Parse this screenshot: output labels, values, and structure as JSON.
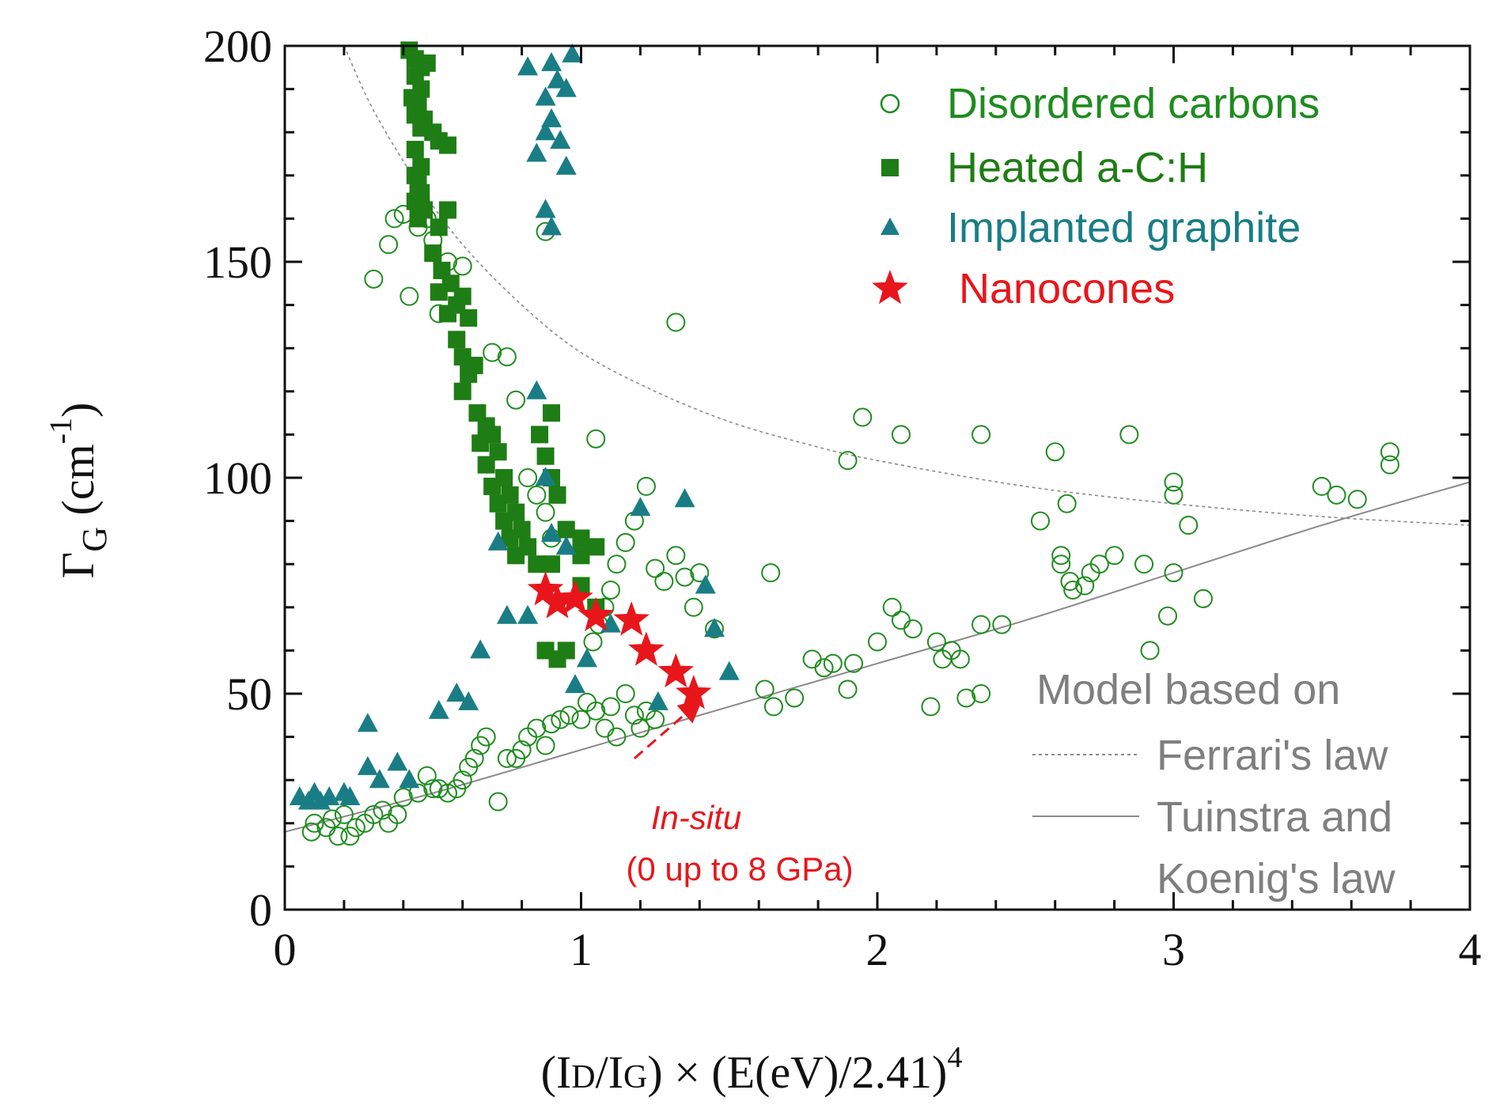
{
  "chart_data": {
    "type": "scatter",
    "title": "",
    "xlabel": "(ID/IG) × (E(eV)/2.41)4",
    "xlabel_parts": {
      "open": "(I",
      "sub1": "D",
      "mid": "/I",
      "sub2": "G",
      "close": ") × (E(eV)/2.41)",
      "sup": "4"
    },
    "ylabel": "ΓG (cm-1)",
    "ylabel_parts": {
      "gamma": "Γ",
      "sub": "G",
      "unit_open": "(cm",
      "sup": "-1",
      "unit_close": ")"
    },
    "xlim": [
      0,
      4
    ],
    "ylim": [
      0,
      200
    ],
    "xticks": [
      "0",
      "1",
      "2",
      "3",
      "4"
    ],
    "yticks": [
      "0",
      "50",
      "100",
      "150",
      "200"
    ],
    "colors": {
      "disordered": "#1e8c1e",
      "heated": "#1e7d14",
      "implanted": "#1a7d86",
      "nanocones": "#e8161b",
      "model": "#8a8a8a"
    },
    "series": [
      {
        "name": "Disordered carbons",
        "marker": "open-circle",
        "points": [
          [
            0.09,
            18
          ],
          [
            0.1,
            20
          ],
          [
            0.14,
            19
          ],
          [
            0.16,
            21
          ],
          [
            0.18,
            17
          ],
          [
            0.2,
            22
          ],
          [
            0.22,
            17
          ],
          [
            0.24,
            19
          ],
          [
            0.27,
            20
          ],
          [
            0.3,
            22
          ],
          [
            0.33,
            23
          ],
          [
            0.35,
            20
          ],
          [
            0.38,
            22
          ],
          [
            0.4,
            26
          ],
          [
            0.45,
            27
          ],
          [
            0.48,
            31
          ],
          [
            0.5,
            28
          ],
          [
            0.52,
            28
          ],
          [
            0.55,
            27
          ],
          [
            0.58,
            28
          ],
          [
            0.6,
            30
          ],
          [
            0.62,
            33
          ],
          [
            0.64,
            35
          ],
          [
            0.66,
            38
          ],
          [
            0.68,
            40
          ],
          [
            0.72,
            25
          ],
          [
            0.75,
            35
          ],
          [
            0.78,
            35
          ],
          [
            0.8,
            37
          ],
          [
            0.82,
            40
          ],
          [
            0.85,
            42
          ],
          [
            0.88,
            38
          ],
          [
            0.9,
            43
          ],
          [
            0.93,
            44
          ],
          [
            0.96,
            45
          ],
          [
            1.0,
            44
          ],
          [
            1.02,
            48
          ],
          [
            1.05,
            46
          ],
          [
            1.08,
            42
          ],
          [
            1.1,
            47
          ],
          [
            1.12,
            40
          ],
          [
            1.15,
            50
          ],
          [
            1.18,
            45
          ],
          [
            1.2,
            42
          ],
          [
            1.22,
            46
          ],
          [
            1.25,
            44
          ],
          [
            1.04,
            62
          ],
          [
            1.06,
            66
          ],
          [
            1.08,
            70
          ],
          [
            1.1,
            74
          ],
          [
            1.12,
            80
          ],
          [
            1.15,
            85
          ],
          [
            1.18,
            90
          ],
          [
            1.22,
            98
          ],
          [
            1.25,
            79
          ],
          [
            1.28,
            76
          ],
          [
            1.32,
            82
          ],
          [
            1.35,
            77
          ],
          [
            1.38,
            70
          ],
          [
            1.4,
            78
          ],
          [
            1.45,
            65
          ],
          [
            1.05,
            109
          ],
          [
            0.9,
            86
          ],
          [
            0.88,
            92
          ],
          [
            0.85,
            96
          ],
          [
            0.82,
            100
          ],
          [
            0.78,
            118
          ],
          [
            0.75,
            128
          ],
          [
            0.7,
            129
          ],
          [
            0.6,
            149
          ],
          [
            0.55,
            150
          ],
          [
            0.5,
            155
          ],
          [
            0.48,
            160
          ],
          [
            0.45,
            158
          ],
          [
            0.4,
            161
          ],
          [
            0.37,
            160
          ],
          [
            0.35,
            154
          ],
          [
            0.3,
            146
          ],
          [
            0.42,
            142
          ],
          [
            0.52,
            138
          ],
          [
            0.88,
            157
          ],
          [
            1.32,
            136
          ],
          [
            1.62,
            51
          ],
          [
            1.65,
            47
          ],
          [
            1.72,
            49
          ],
          [
            1.78,
            58
          ],
          [
            1.82,
            56
          ],
          [
            1.85,
            57
          ],
          [
            1.9,
            51
          ],
          [
            1.92,
            57
          ],
          [
            2.0,
            62
          ],
          [
            2.05,
            70
          ],
          [
            2.08,
            67
          ],
          [
            2.12,
            65
          ],
          [
            2.18,
            47
          ],
          [
            2.2,
            62
          ],
          [
            2.22,
            58
          ],
          [
            2.25,
            60
          ],
          [
            2.28,
            58
          ],
          [
            2.3,
            49
          ],
          [
            2.35,
            66
          ],
          [
            2.35,
            50
          ],
          [
            2.42,
            66
          ],
          [
            1.64,
            78
          ],
          [
            1.9,
            104
          ],
          [
            1.95,
            114
          ],
          [
            2.08,
            110
          ],
          [
            2.35,
            110
          ],
          [
            2.55,
            90
          ],
          [
            2.6,
            106
          ],
          [
            2.62,
            82
          ],
          [
            2.62,
            80
          ],
          [
            2.64,
            94
          ],
          [
            2.65,
            76
          ],
          [
            2.66,
            74
          ],
          [
            2.7,
            75
          ],
          [
            2.72,
            78
          ],
          [
            2.75,
            80
          ],
          [
            2.8,
            82
          ],
          [
            2.85,
            110
          ],
          [
            2.9,
            80
          ],
          [
            2.92,
            60
          ],
          [
            2.98,
            68
          ],
          [
            3.0,
            78
          ],
          [
            3.0,
            96
          ],
          [
            3.0,
            99
          ],
          [
            3.05,
            89
          ],
          [
            3.1,
            72
          ],
          [
            3.5,
            98
          ],
          [
            3.55,
            96
          ],
          [
            3.62,
            95
          ],
          [
            3.73,
            103
          ],
          [
            3.73,
            106
          ]
        ]
      },
      {
        "name": "Heated a-C:H",
        "marker": "filled-square",
        "points": [
          [
            0.42,
            199
          ],
          [
            0.44,
            197
          ],
          [
            0.46,
            195
          ],
          [
            0.48,
            196
          ],
          [
            0.44,
            193
          ],
          [
            0.46,
            190
          ],
          [
            0.43,
            188
          ],
          [
            0.45,
            186
          ],
          [
            0.44,
            184
          ],
          [
            0.47,
            183
          ],
          [
            0.46,
            181
          ],
          [
            0.5,
            180
          ],
          [
            0.52,
            178
          ],
          [
            0.55,
            177
          ],
          [
            0.44,
            176
          ],
          [
            0.46,
            172
          ],
          [
            0.44,
            170
          ],
          [
            0.45,
            168
          ],
          [
            0.46,
            166
          ],
          [
            0.44,
            164
          ],
          [
            0.47,
            162
          ],
          [
            0.45,
            160
          ],
          [
            0.52,
            158
          ],
          [
            0.55,
            162
          ],
          [
            0.5,
            152
          ],
          [
            0.53,
            148
          ],
          [
            0.56,
            145
          ],
          [
            0.52,
            143
          ],
          [
            0.58,
            140
          ],
          [
            0.55,
            138
          ],
          [
            0.6,
            142
          ],
          [
            0.62,
            137
          ],
          [
            0.58,
            132
          ],
          [
            0.6,
            128
          ],
          [
            0.62,
            124
          ],
          [
            0.64,
            126
          ],
          [
            0.6,
            120
          ],
          [
            0.65,
            115
          ],
          [
            0.68,
            112
          ],
          [
            0.7,
            110
          ],
          [
            0.66,
            108
          ],
          [
            0.72,
            106
          ],
          [
            0.68,
            103
          ],
          [
            0.74,
            100
          ],
          [
            0.7,
            98
          ],
          [
            0.76,
            96
          ],
          [
            0.72,
            94
          ],
          [
            0.78,
            92
          ],
          [
            0.74,
            90
          ],
          [
            0.8,
            88
          ],
          [
            0.76,
            86
          ],
          [
            0.82,
            84
          ],
          [
            0.78,
            82
          ],
          [
            0.85,
            80
          ],
          [
            0.9,
            100
          ],
          [
            0.92,
            96
          ],
          [
            0.88,
            105
          ],
          [
            0.86,
            110
          ],
          [
            0.9,
            115
          ],
          [
            0.95,
            88
          ],
          [
            1.0,
            86
          ],
          [
            1.05,
            84
          ],
          [
            1.0,
            82
          ],
          [
            0.9,
            80
          ],
          [
            0.88,
            60
          ],
          [
            0.92,
            58
          ],
          [
            0.95,
            60
          ],
          [
            1.0,
            75
          ],
          [
            1.05,
            70
          ]
        ]
      },
      {
        "name": "Implanted graphite",
        "marker": "filled-triangle",
        "points": [
          [
            0.05,
            26
          ],
          [
            0.08,
            25
          ],
          [
            0.1,
            27
          ],
          [
            0.12,
            25
          ],
          [
            0.15,
            26
          ],
          [
            0.2,
            27
          ],
          [
            0.22,
            26
          ],
          [
            0.28,
            33
          ],
          [
            0.28,
            43
          ],
          [
            0.32,
            30
          ],
          [
            0.38,
            34
          ],
          [
            0.42,
            30
          ],
          [
            0.52,
            46
          ],
          [
            0.58,
            50
          ],
          [
            0.62,
            48
          ],
          [
            0.66,
            60
          ],
          [
            0.72,
            85
          ],
          [
            0.75,
            68
          ],
          [
            0.82,
            68
          ],
          [
            0.85,
            120
          ],
          [
            0.88,
            100
          ],
          [
            0.9,
            87
          ],
          [
            0.95,
            84
          ],
          [
            0.98,
            52
          ],
          [
            1.02,
            58
          ],
          [
            1.1,
            66
          ],
          [
            1.2,
            93
          ],
          [
            1.26,
            48
          ],
          [
            1.35,
            95
          ],
          [
            1.42,
            75
          ],
          [
            1.45,
            65
          ],
          [
            1.5,
            55
          ],
          [
            0.82,
            195
          ],
          [
            0.88,
            188
          ],
          [
            0.9,
            196
          ],
          [
            0.92,
            192
          ],
          [
            0.95,
            190
          ],
          [
            0.97,
            198
          ],
          [
            0.85,
            175
          ],
          [
            0.88,
            180
          ],
          [
            0.9,
            183
          ],
          [
            0.93,
            178
          ],
          [
            0.95,
            172
          ],
          [
            0.88,
            162
          ],
          [
            0.9,
            158
          ]
        ]
      },
      {
        "name": "Nanocones",
        "marker": "filled-star",
        "points": [
          [
            0.88,
            74
          ],
          [
            0.92,
            71
          ],
          [
            0.98,
            72
          ],
          [
            1.05,
            68
          ],
          [
            1.17,
            67
          ],
          [
            1.22,
            60
          ],
          [
            1.32,
            55
          ],
          [
            1.38,
            50
          ]
        ]
      }
    ],
    "model_curves": [
      {
        "name": "Ferrari's law",
        "style": "dashed",
        "points": [
          [
            0.2,
            200
          ],
          [
            0.3,
            185
          ],
          [
            0.45,
            168
          ],
          [
            0.6,
            154
          ],
          [
            0.8,
            140
          ],
          [
            1.0,
            129
          ],
          [
            1.25,
            120
          ],
          [
            1.5,
            113
          ],
          [
            1.75,
            108
          ],
          [
            2.0,
            104
          ],
          [
            2.5,
            98
          ],
          [
            3.0,
            94
          ],
          [
            3.5,
            91
          ],
          [
            4.0,
            89
          ]
        ]
      },
      {
        "name": "Tuinstra and Koenig's law",
        "style": "solid",
        "points": [
          [
            0.0,
            18
          ],
          [
            0.5,
            27
          ],
          [
            1.0,
            37
          ],
          [
            1.5,
            47
          ],
          [
            2.0,
            57
          ],
          [
            2.5,
            67
          ],
          [
            3.0,
            78
          ],
          [
            3.5,
            89
          ],
          [
            4.0,
            99
          ]
        ]
      }
    ],
    "legend": {
      "position": "top-right",
      "items": [
        {
          "label": "Disordered carbons",
          "color": "#1e8c1e",
          "marker": "open-circle"
        },
        {
          "label": "Heated a-C:H",
          "color": "#1e7d14",
          "marker": "filled-square"
        },
        {
          "label": "Implanted graphite",
          "color": "#1a7d86",
          "marker": "filled-triangle"
        },
        {
          "label": " Nanocones",
          "color": "#e8161b",
          "marker": "filled-star"
        }
      ]
    },
    "model_legend": {
      "position": "bottom-right",
      "title": "Model based on",
      "entries": [
        "Ferrari's law",
        "Tuinstra and",
        "Koenig's law"
      ]
    },
    "annotation": {
      "line1": "In-situ",
      "line2": "(0 up to 8 GPa)",
      "arrow_from": [
        1.18,
        35
      ],
      "arrow_to": [
        1.38,
        47
      ]
    }
  }
}
